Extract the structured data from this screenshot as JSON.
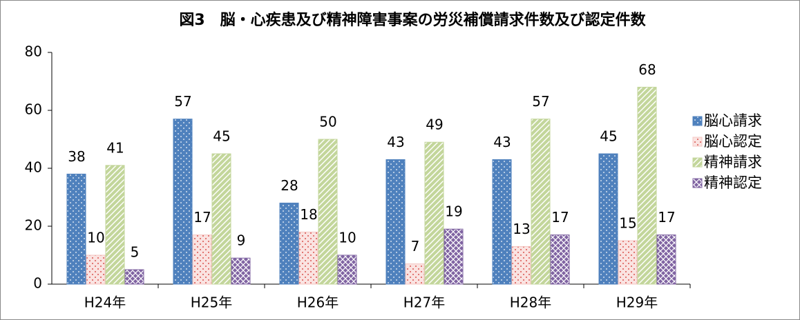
{
  "chart_data": {
    "type": "bar",
    "title": "図3　脳・心疾患及び精神障害事案の労災補償請求件数及び認定件数",
    "categories": [
      "H24年",
      "H25年",
      "H26年",
      "H27年",
      "H28年",
      "H29年"
    ],
    "series": [
      {
        "name": "脳心請求",
        "color": "#4f81bd",
        "values": [
          38,
          57,
          28,
          43,
          43,
          45
        ]
      },
      {
        "name": "脳心認定",
        "color": "#f4c7c3",
        "values": [
          10,
          17,
          18,
          7,
          13,
          15
        ]
      },
      {
        "name": "精神請求",
        "color": "#c3d69b",
        "values": [
          41,
          45,
          50,
          49,
          57,
          68
        ]
      },
      {
        "name": "精神認定",
        "color": "#8064a2",
        "values": [
          5,
          9,
          10,
          19,
          17,
          17
        ]
      }
    ],
    "ylim": [
      0,
      80
    ],
    "yticks": [
      0,
      20,
      40,
      60,
      80
    ],
    "legend": "right"
  }
}
